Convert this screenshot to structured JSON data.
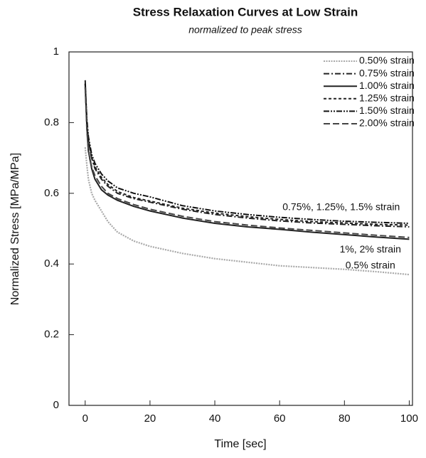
{
  "chart_data": {
    "type": "line",
    "title": "Stress Relaxation Curves at Low Strain",
    "subtitle": "normalized to peak stress",
    "x_label": "Time [sec]",
    "y_label": "Normalized Stress [MPa/MPa]",
    "x": [
      0,
      0.5,
      1,
      2,
      3,
      5,
      7,
      10,
      15,
      20,
      30,
      40,
      50,
      60,
      70,
      80,
      90,
      100
    ],
    "series": [
      {
        "name": "0.50% strain",
        "color": "#a8a8a8",
        "linestyle": "dotted",
        "values": [
          0.73,
          0.68,
          0.64,
          0.6,
          0.58,
          0.55,
          0.52,
          0.49,
          0.465,
          0.45,
          0.43,
          0.415,
          0.405,
          0.395,
          0.39,
          0.385,
          0.378,
          0.37
        ]
      },
      {
        "name": "0.75% strain",
        "color": "#222222",
        "linestyle": "dashdot",
        "values": [
          0.9,
          0.8,
          0.75,
          0.7,
          0.67,
          0.64,
          0.62,
          0.6,
          0.585,
          0.575,
          0.555,
          0.54,
          0.53,
          0.522,
          0.516,
          0.512,
          0.508,
          0.505
        ]
      },
      {
        "name": "1.00% strain",
        "color": "#222222",
        "linestyle": "solid",
        "values": [
          0.92,
          0.79,
          0.72,
          0.67,
          0.64,
          0.61,
          0.595,
          0.58,
          0.563,
          0.55,
          0.53,
          0.515,
          0.505,
          0.498,
          0.49,
          0.483,
          0.476,
          0.47
        ]
      },
      {
        "name": "1.25% strain",
        "color": "#222222",
        "linestyle": "shortdash",
        "values": [
          0.91,
          0.8,
          0.75,
          0.7,
          0.675,
          0.645,
          0.625,
          0.605,
          0.588,
          0.578,
          0.558,
          0.544,
          0.534,
          0.526,
          0.52,
          0.516,
          0.512,
          0.51
        ]
      },
      {
        "name": "1.50% strain",
        "color": "#111111",
        "linestyle": "dashdotdot",
        "values": [
          0.91,
          0.81,
          0.76,
          0.71,
          0.685,
          0.655,
          0.635,
          0.615,
          0.6,
          0.59,
          0.565,
          0.55,
          0.54,
          0.532,
          0.526,
          0.521,
          0.518,
          0.515
        ]
      },
      {
        "name": "2.00% strain",
        "color": "#444444",
        "linestyle": "dashed",
        "values": [
          0.9,
          0.78,
          0.72,
          0.675,
          0.65,
          0.62,
          0.6,
          0.585,
          0.568,
          0.555,
          0.535,
          0.52,
          0.51,
          0.502,
          0.495,
          0.488,
          0.481,
          0.475
        ]
      }
    ],
    "annotations": [
      {
        "text": "0.75%, 1.25%, 1.5% strain",
        "x": 79,
        "y": 0.56
      },
      {
        "text": "1%, 2% strain",
        "x": 88,
        "y": 0.44
      },
      {
        "text": "0.5% strain",
        "x": 88,
        "y": 0.395
      }
    ],
    "xlim": [
      -5,
      101
    ],
    "ylim": [
      0,
      1
    ],
    "xticks": [
      0,
      20,
      40,
      60,
      80,
      100
    ],
    "yticks": [
      0,
      0.2,
      0.4,
      0.6,
      0.8,
      1
    ],
    "legend": "upper right"
  }
}
